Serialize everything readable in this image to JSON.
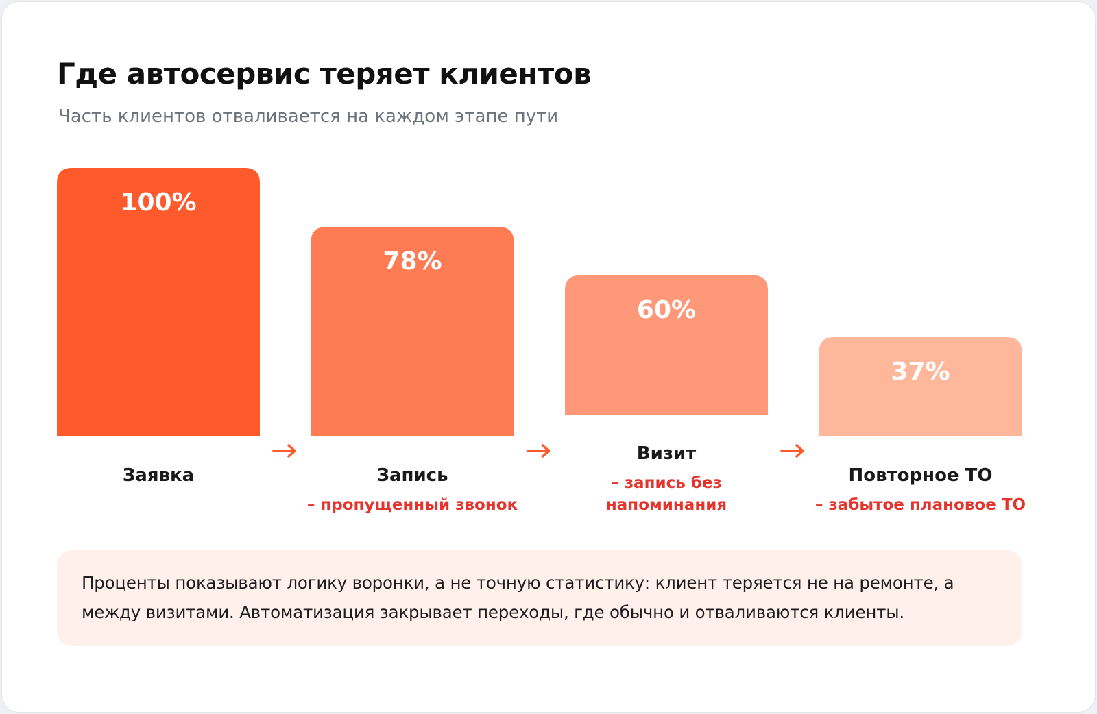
{
  "header": {
    "title": "Где автосервис теряет клиентов",
    "subtitle": "Часть клиентов отваливается на каждом этапе пути"
  },
  "chart_data": {
    "type": "bar",
    "title": "Где автосервис теряет клиентов",
    "subtitle": "Часть клиентов отваливается на каждом этапе пути",
    "categories": [
      "Заявка",
      "Запись",
      "Визит",
      "Повторное ТО"
    ],
    "values": [
      100,
      78,
      60,
      37
    ],
    "value_labels": [
      "100%",
      "78%",
      "60%",
      "37%"
    ],
    "losses": [
      [],
      [
        "– пропущенный звонок"
      ],
      [
        "– запись без",
        "напоминания"
      ],
      [
        "– забытое плановое ТО"
      ]
    ],
    "bar_colors": [
      "#ff5a2b",
      "#ff7b54",
      "#ff9878",
      "#ffb79b"
    ],
    "arrow_color": "#ff5a2b",
    "ylim": [
      0,
      100
    ],
    "grid": false,
    "legend": "none"
  },
  "note": {
    "line1": "Проценты показывают логику воронки, а не точную статистику: клиент теряется не на ремонте, а",
    "line2": "между визитами. Автоматизация закрывает переходы, где обычно и отваливаются клиенты."
  }
}
